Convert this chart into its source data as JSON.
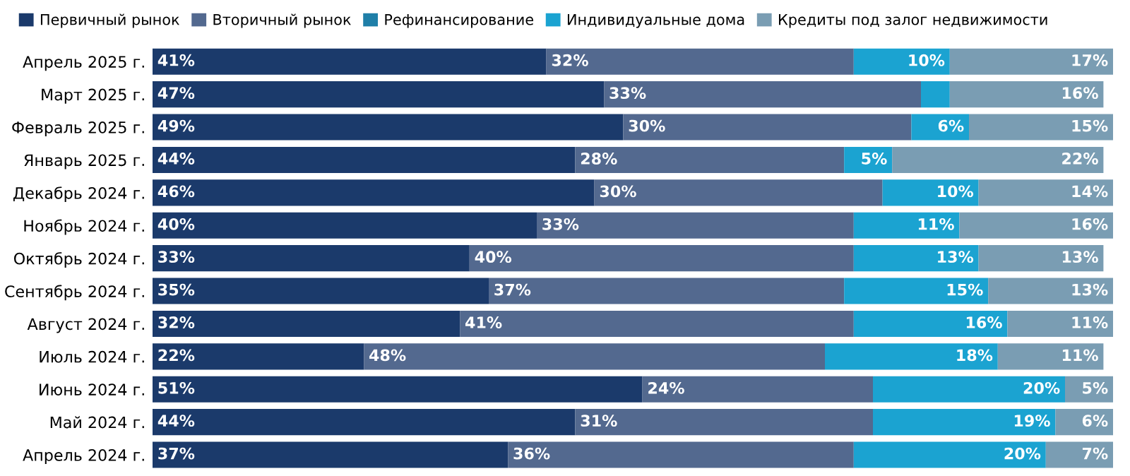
{
  "chart_data": {
    "type": "bar",
    "orientation": "horizontal",
    "stacked": true,
    "legend": "top left",
    "grid": false,
    "tick_labels": "y",
    "categories": [
      "Апрель 2025 г.",
      "Март 2025 г.",
      "Февраль 2025 г.",
      "Январь 2025 г.",
      "Декабрь 2024 г.",
      "Ноябрь 2024 г.",
      "Октябрь 2024 г.",
      "Сентябрь 2024 г.",
      "Август 2024 г.",
      "Июль 2024 г.",
      "Июнь 2024 г.",
      "Май 2024 г.",
      "Апрель 2024 г."
    ],
    "series": [
      {
        "name": "Первичный рынок",
        "color": "#1b3a6b",
        "values": [
          41,
          47,
          49,
          44,
          46,
          40,
          33,
          35,
          32,
          22,
          51,
          44,
          37
        ],
        "value_labels": [
          "41%",
          "47%",
          "49%",
          "44%",
          "46%",
          "40%",
          "33%",
          "35%",
          "32%",
          "22%",
          "51%",
          "44%",
          "37%"
        ]
      },
      {
        "name": "Вторичный рынок",
        "color": "#53698f",
        "values": [
          32,
          33,
          30,
          28,
          30,
          33,
          40,
          37,
          41,
          48,
          24,
          31,
          36
        ],
        "value_labels": [
          "32%",
          "33%",
          "30%",
          "28%",
          "30%",
          "33%",
          "40%",
          "37%",
          "41%",
          "48%",
          "24%",
          "31%",
          "36%"
        ]
      },
      {
        "name": "Рефинансирование",
        "color": "#1f7fa8",
        "values": [
          null,
          null,
          null,
          null,
          null,
          null,
          null,
          null,
          null,
          null,
          null,
          null,
          null
        ]
      },
      {
        "name": "Индивидуальные дома",
        "color": "#1ba3d1",
        "values": [
          10,
          3,
          6,
          5,
          10,
          11,
          13,
          15,
          16,
          18,
          20,
          19,
          20
        ],
        "value_labels": [
          "10%",
          null,
          "6%",
          "5%",
          "10%",
          "11%",
          "13%",
          "15%",
          "16%",
          "18%",
          "20%",
          "19%",
          "20%"
        ]
      },
      {
        "name": "Кредиты под залог недвижимости",
        "color": "#7a9db3",
        "values": [
          17,
          16,
          15,
          22,
          14,
          16,
          13,
          13,
          11,
          11,
          5,
          6,
          7
        ],
        "value_labels": [
          "17%",
          "16%",
          "15%",
          "22%",
          "14%",
          "16%",
          "13%",
          "13%",
          "11%",
          "11%",
          "5%",
          "6%",
          "7%"
        ]
      }
    ]
  }
}
